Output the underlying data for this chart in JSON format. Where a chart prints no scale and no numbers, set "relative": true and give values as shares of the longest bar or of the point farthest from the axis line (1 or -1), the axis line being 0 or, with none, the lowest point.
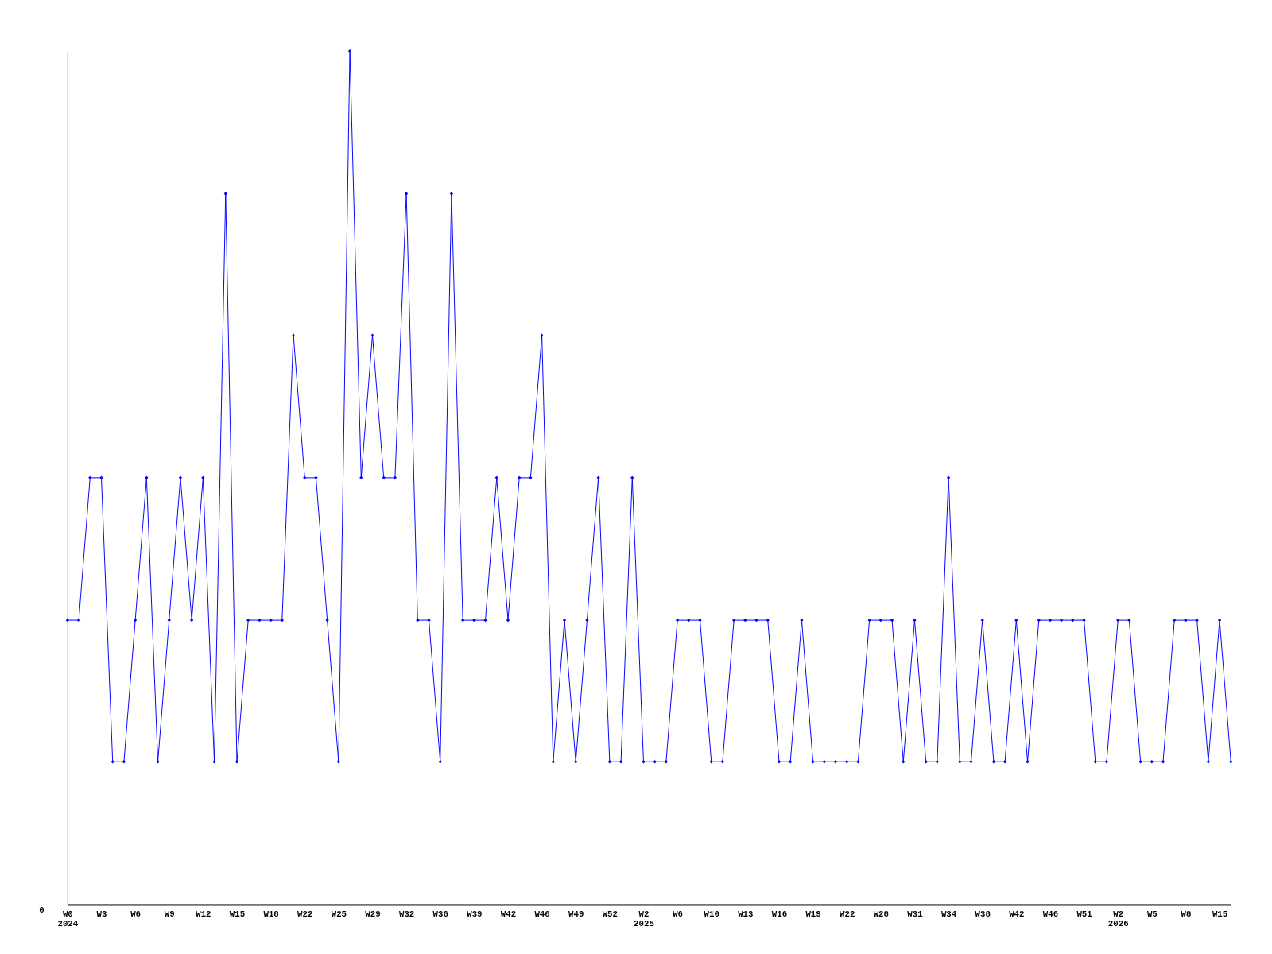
{
  "chart_data": {
    "type": "line",
    "relative": true,
    "marker": "diamond",
    "line_style": "solid",
    "grid": false,
    "categories": [
      "W0\n2024",
      null,
      null,
      "W3",
      null,
      null,
      "W6",
      null,
      null,
      "W9",
      null,
      null,
      "W12",
      null,
      null,
      "W15",
      null,
      null,
      "W18",
      null,
      null,
      "W22",
      null,
      null,
      "W25",
      null,
      null,
      "W29",
      null,
      null,
      "W32",
      null,
      null,
      "W36",
      null,
      null,
      "W39",
      null,
      null,
      "W42",
      null,
      null,
      "W46",
      null,
      null,
      "W49",
      null,
      null,
      "W52",
      null,
      null,
      "W2\n2025",
      null,
      null,
      "W6",
      null,
      null,
      "W10",
      null,
      null,
      "W13",
      null,
      null,
      "W16",
      null,
      null,
      "W19",
      null,
      null,
      "W22",
      null,
      null,
      "W28",
      null,
      null,
      "W31",
      null,
      null,
      "W34",
      null,
      null,
      "W38",
      null,
      null,
      "W42",
      null,
      null,
      "W46",
      null,
      null,
      "W51",
      null,
      null,
      "W2\n2026",
      null,
      null,
      "W5",
      null,
      null,
      "W8",
      null,
      null,
      "W15",
      null
    ],
    "series": [
      {
        "color": "#0000ff",
        "values": [
          0.333,
          0.333,
          0.5,
          0.5,
          0.167,
          0.167,
          0.333,
          0.5,
          0.167,
          0.333,
          0.5,
          0.333,
          0.5,
          0.167,
          0.833,
          0.167,
          0.333,
          0.333,
          0.333,
          0.333,
          0.667,
          0.5,
          0.5,
          0.333,
          0.167,
          1,
          0.5,
          0.667,
          0.5,
          0.5,
          0.833,
          0.333,
          0.333,
          0.167,
          0.833,
          0.333,
          0.333,
          0.333,
          0.5,
          0.333,
          0.5,
          0.5,
          0.667,
          0.167,
          0.333,
          0.167,
          0.333,
          0.5,
          0.167,
          0.167,
          0.5,
          0.167,
          0.167,
          0.167,
          0.333,
          0.333,
          0.333,
          0.167,
          0.167,
          0.333,
          0.333,
          0.333,
          0.333,
          0.167,
          0.167,
          0.333,
          0.167,
          0.167,
          0.167,
          0.167,
          0.167,
          0.333,
          0.333,
          0.333,
          0.167,
          0.333,
          0.167,
          0.167,
          0.5,
          0.167,
          0.167,
          0.333,
          0.167,
          0.167,
          0.333,
          0.167,
          0.333,
          0.333,
          0.333,
          0.333,
          0.333,
          0.167,
          0.167,
          0.333,
          0.333,
          0.167,
          0.167,
          0.167,
          0.333,
          0.333,
          0.333,
          0.167,
          0.333,
          0.167
        ]
      }
    ],
    "annotations": [
      "0"
    ]
  }
}
